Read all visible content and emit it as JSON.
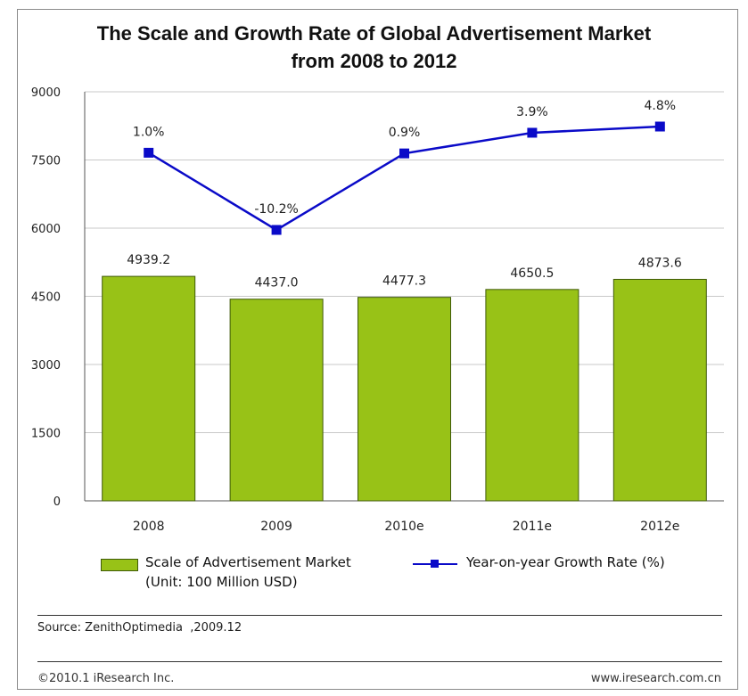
{
  "chart_data": {
    "type": "bar",
    "title_lines": [
      "The Scale and Growth Rate of Global Advertisement Market",
      "from 2008 to 2012"
    ],
    "categories": [
      "2008",
      "2009",
      "2010e",
      "2011e",
      "2012e"
    ],
    "ylim": [
      0,
      9000
    ],
    "yticks": [
      "0",
      "1500",
      "3000",
      "4500",
      "6000",
      "7500",
      "9000"
    ],
    "grid": true,
    "series": [
      {
        "name_lines": [
          "Scale of Advertisement Market",
          "(Unit: 100 Million USD)"
        ],
        "type": "bar",
        "color": "#98c217",
        "values": [
          4939.2,
          4437.0,
          4477.3,
          4650.5,
          4873.6
        ],
        "labels": [
          "4939.2",
          "4437.0",
          "4477.3",
          "4650.5",
          "4873.6"
        ]
      },
      {
        "name": "Year-on-year Growth Rate (%)",
        "type": "line",
        "color": "#0a0ac8",
        "values": [
          1.0,
          -10.2,
          0.9,
          3.9,
          4.8
        ],
        "labels": [
          "1.0%",
          "-10.2%",
          "0.9%",
          "3.9%",
          "4.8%"
        ]
      }
    ],
    "legend_position": "bottom"
  },
  "source": "Source: ZenithOptimedia  ,2009.12",
  "copyright": "©2010.1 iResearch Inc.",
  "website": "www.iresearch.com.cn"
}
